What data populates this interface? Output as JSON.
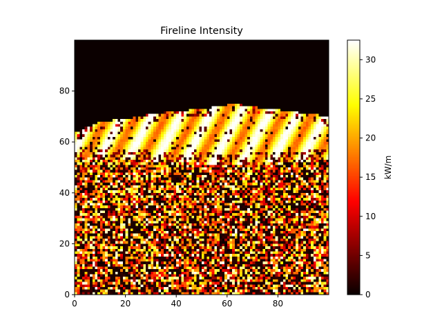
{
  "chart_data": {
    "type": "heatmap",
    "title": "Fireline Intensity",
    "xlabel": "",
    "ylabel": "",
    "colorbar_label": "kW/m",
    "colormap": "hot",
    "grid_shape": [
      100,
      100
    ],
    "xlim": [
      0,
      100
    ],
    "ylim": [
      0,
      100
    ],
    "x_ticks": [
      0,
      20,
      40,
      60,
      80
    ],
    "y_ticks": [
      0,
      20,
      40,
      60,
      80
    ],
    "clim": [
      0,
      32.5
    ],
    "colorbar_ticks": [
      0,
      5,
      10,
      15,
      20,
      25,
      30
    ],
    "regions": [
      {
        "name": "burned-out scattered",
        "rows": [
          0,
          51
        ],
        "distribution": "random patchy",
        "value_range": [
          0,
          32.5
        ]
      },
      {
        "name": "active fire front",
        "rows_lower_edge_range": [
          52,
          57
        ],
        "rows_upper_edge_range": [
          63,
          74
        ],
        "value_range": [
          15,
          32.5
        ],
        "pattern": "diagonal streaks"
      },
      {
        "name": "unburned",
        "rows_above_front": true,
        "value": 0
      }
    ],
    "front_top_profile": [
      {
        "x": 0,
        "y": 63
      },
      {
        "x": 10,
        "y": 67
      },
      {
        "x": 20,
        "y": 68
      },
      {
        "x": 30,
        "y": 70
      },
      {
        "x": 40,
        "y": 71
      },
      {
        "x": 50,
        "y": 72
      },
      {
        "x": 57,
        "y": 73
      },
      {
        "x": 62,
        "y": 74
      },
      {
        "x": 68,
        "y": 73
      },
      {
        "x": 75,
        "y": 72
      },
      {
        "x": 85,
        "y": 71
      },
      {
        "x": 92,
        "y": 70
      },
      {
        "x": 99,
        "y": 69
      }
    ],
    "front_bottom_profile": [
      {
        "x": 0,
        "y": 55
      },
      {
        "x": 20,
        "y": 54
      },
      {
        "x": 40,
        "y": 53
      },
      {
        "x": 60,
        "y": 52
      },
      {
        "x": 80,
        "y": 53
      },
      {
        "x": 99,
        "y": 54
      }
    ]
  }
}
